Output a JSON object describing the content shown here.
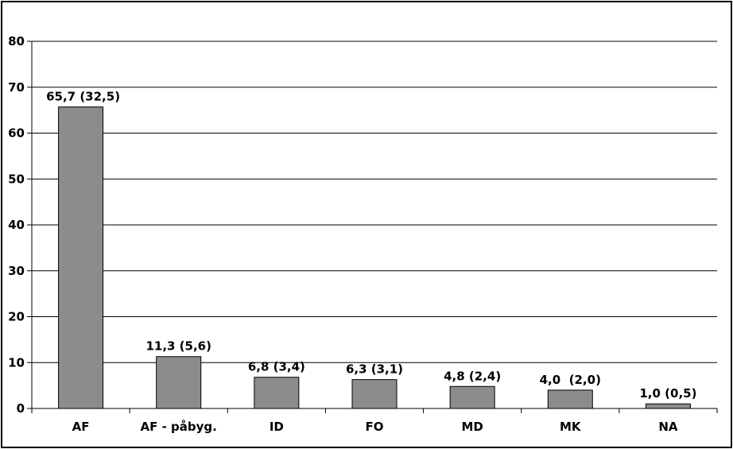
{
  "chart_data": {
    "type": "bar",
    "categories": [
      "AF",
      "AF - påbyg.",
      "ID",
      "FO",
      "MD",
      "MK",
      "NA"
    ],
    "values": [
      65.7,
      11.3,
      6.8,
      6.3,
      4.8,
      4.0,
      1.0
    ],
    "data_labels": [
      "65,7 (32,5)",
      "11,3 (5,6)",
      "6,8 (3,4)",
      "6,3 (3,1)",
      "4,8 (2,4)",
      "4,0  (2,0)",
      "1,0 (0,5)"
    ],
    "y_ticks": [
      "0",
      "10",
      "20",
      "30",
      "40",
      "50",
      "60",
      "70",
      "80"
    ],
    "ylim": [
      0,
      80
    ],
    "title": "",
    "xlabel": "",
    "ylabel": "",
    "grid": true,
    "bar_color": "#8c8c8c",
    "bar_edge_color": "#000000"
  }
}
